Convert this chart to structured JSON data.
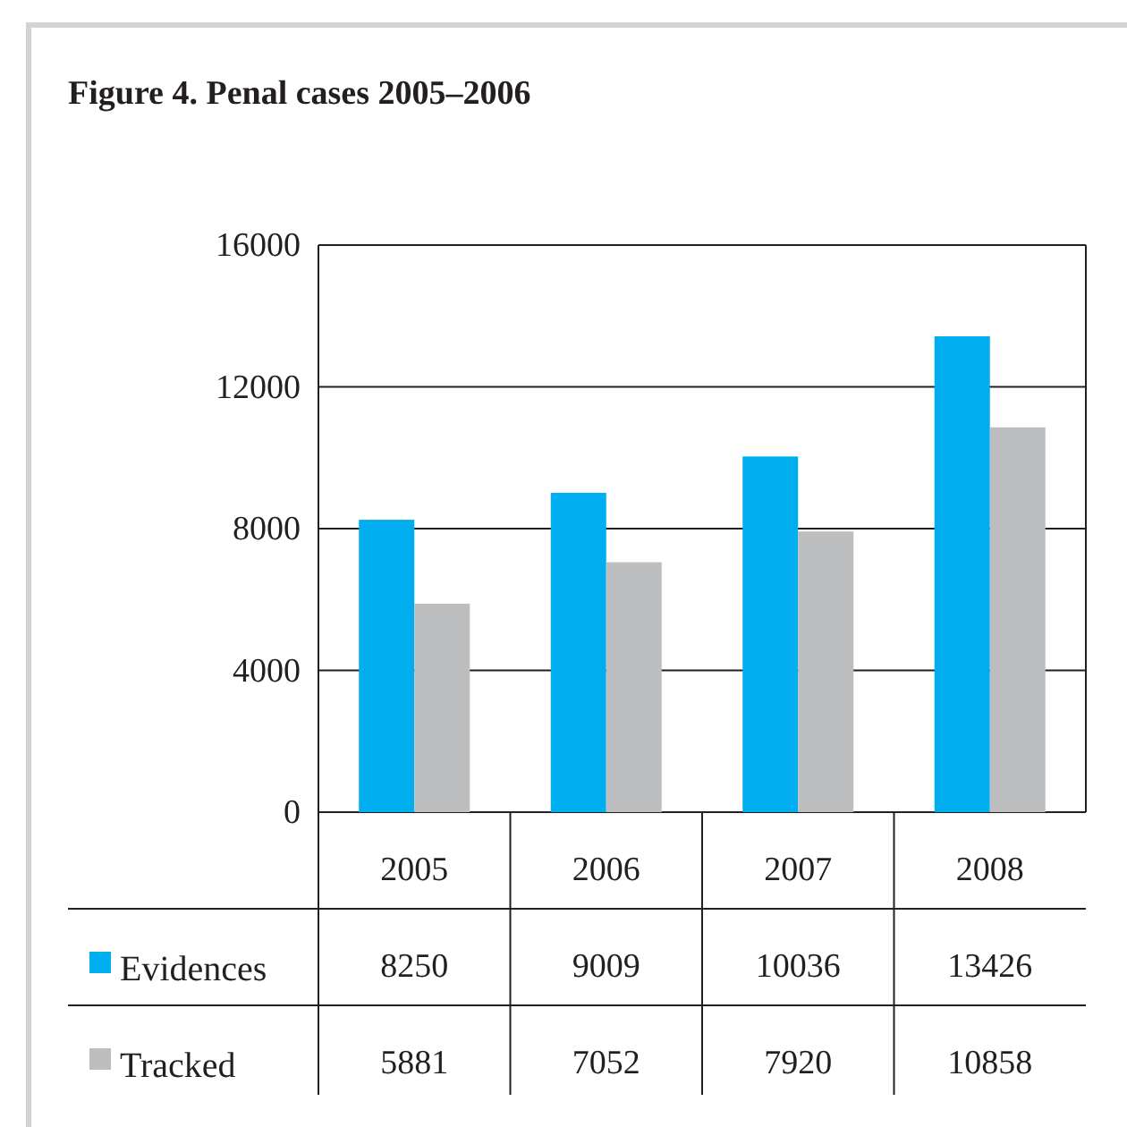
{
  "chart_data": {
    "type": "bar",
    "title": "Figure 4. Penal cases 2005–2006",
    "categories": [
      "2005",
      "2006",
      "2007",
      "2008"
    ],
    "series": [
      {
        "name": "Evidences",
        "color": "#00aeef",
        "values": [
          8250,
          9009,
          10036,
          13426
        ]
      },
      {
        "name": "Tracked",
        "color": "#bcbec0",
        "values": [
          5881,
          7052,
          7920,
          10858
        ]
      }
    ],
    "ylim": [
      0,
      16000
    ],
    "yticks": [
      0,
      4000,
      8000,
      12000,
      16000
    ],
    "grid": "y",
    "legend": "bottom",
    "data_labels": true
  }
}
